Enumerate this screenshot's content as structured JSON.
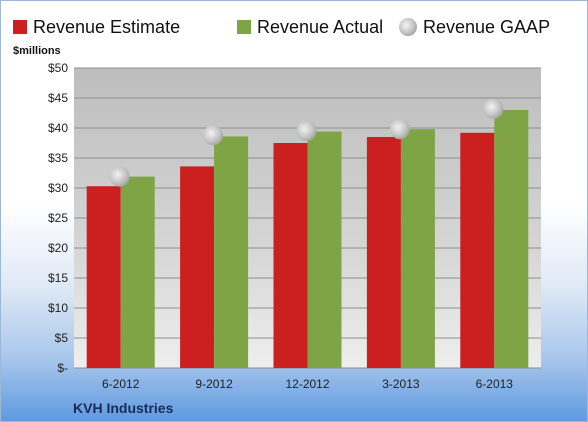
{
  "chart_data": {
    "type": "bar",
    "categories": [
      "6-2012",
      "9-2012",
      "12-2012",
      "3-2013",
      "6-2013"
    ],
    "series": [
      {
        "name": "Revenue Estimate",
        "values": [
          30.3,
          33.6,
          37.5,
          38.5,
          39.2
        ],
        "color": "#cc1f1f",
        "kind": "bar"
      },
      {
        "name": "Revenue Actual",
        "values": [
          31.9,
          38.6,
          39.4,
          39.8,
          43.0
        ],
        "color": "#7fa446",
        "kind": "bar"
      },
      {
        "name": "Revenue GAAP",
        "values": [
          31.9,
          38.8,
          39.5,
          39.8,
          43.2
        ],
        "color": "#c8c8c8",
        "kind": "marker"
      }
    ],
    "ylabel": "$millions",
    "ylim": [
      0,
      50
    ],
    "yticks": [
      0,
      5,
      10,
      15,
      20,
      25,
      30,
      35,
      40,
      45,
      50
    ],
    "ytick_labels": [
      "$-",
      "$5",
      "$10",
      "$15",
      "$20",
      "$25",
      "$30",
      "$35",
      "$40",
      "$45",
      "$50"
    ],
    "grid": true,
    "legend": "top",
    "footer": "KVH Industries"
  }
}
